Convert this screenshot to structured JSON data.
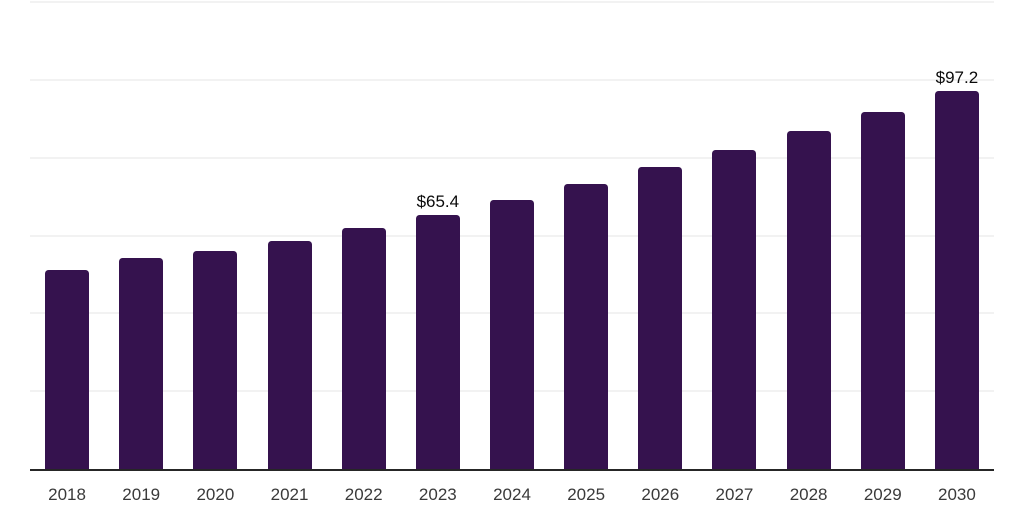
{
  "chart_data": {
    "type": "bar",
    "title": "",
    "xlabel": "",
    "ylabel": "",
    "categories": [
      "2018",
      "2019",
      "2020",
      "2021",
      "2022",
      "2023",
      "2024",
      "2025",
      "2026",
      "2027",
      "2028",
      "2029",
      "2030"
    ],
    "values": [
      51.1,
      54.2,
      56.1,
      58.7,
      62.0,
      65.4,
      69.1,
      73.2,
      77.5,
      81.9,
      86.9,
      91.8,
      97.2
    ],
    "annotations": [
      {
        "category": "2023",
        "text": "$65.4"
      },
      {
        "category": "2030",
        "text": "$97.2"
      }
    ],
    "ylim": [
      0,
      120
    ],
    "gridline_step": 20,
    "grid": "horizontal",
    "legend_position": "none",
    "y_axis_tick_labels_visible": false,
    "colors": {
      "bar": "#35124E",
      "axis_line": "#262626",
      "gridline": "#f2f2f2",
      "value_label": "#0a0a0a",
      "tick_label": "#3a3a3a",
      "background": "#ffffff"
    }
  }
}
